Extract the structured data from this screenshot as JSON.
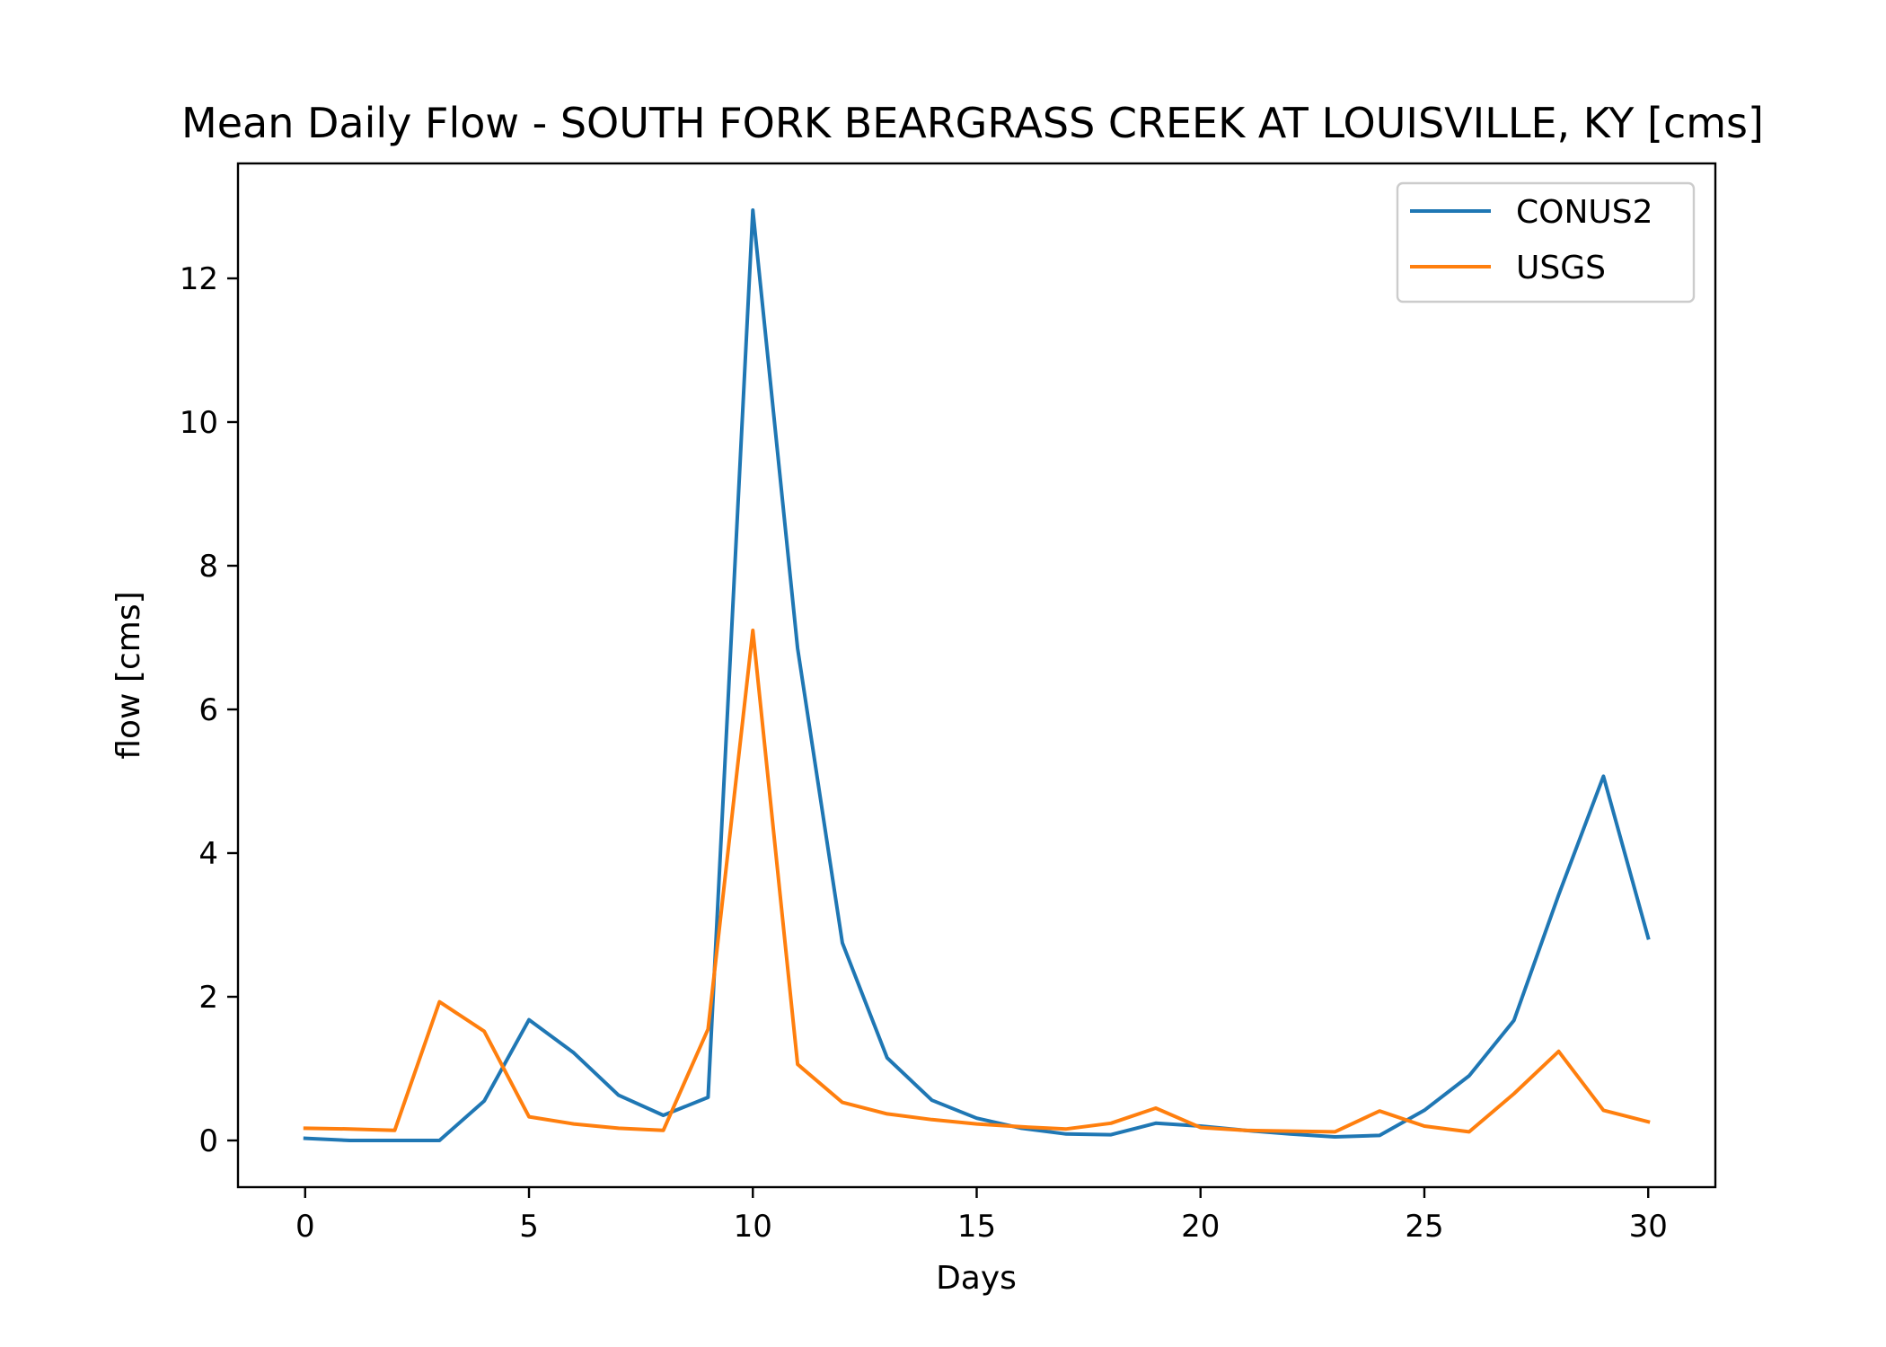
{
  "chart_data": {
    "type": "line",
    "title": "Mean Daily Flow - SOUTH FORK BEARGRASS CREEK AT LOUISVILLE, KY [cms]",
    "xlabel": "Days",
    "ylabel": "flow [cms]",
    "xlim": [
      -1.5,
      31.5
    ],
    "ylim": [
      -0.65,
      13.6
    ],
    "xticks": [
      0,
      5,
      10,
      15,
      20,
      25,
      30
    ],
    "yticks": [
      0,
      2,
      4,
      6,
      8,
      10,
      12
    ],
    "grid": false,
    "legend_position": "upper-right",
    "x": [
      0,
      1,
      2,
      3,
      4,
      5,
      6,
      7,
      8,
      9,
      10,
      11,
      12,
      13,
      14,
      15,
      16,
      17,
      18,
      19,
      20,
      21,
      22,
      23,
      24,
      25,
      26,
      27,
      28,
      29,
      30
    ],
    "series": [
      {
        "name": "CONUS2",
        "color": "#1f77b4",
        "values": [
          0.03,
          0.0,
          0.0,
          0.0,
          0.55,
          1.68,
          1.22,
          0.63,
          0.35,
          0.6,
          12.95,
          6.85,
          2.75,
          1.15,
          0.56,
          0.31,
          0.17,
          0.09,
          0.08,
          0.24,
          0.2,
          0.14,
          0.09,
          0.05,
          0.07,
          0.42,
          0.9,
          1.67,
          3.42,
          5.07,
          2.82
        ]
      },
      {
        "name": "USGS",
        "color": "#ff7f0e",
        "values": [
          0.17,
          0.16,
          0.14,
          1.93,
          1.52,
          0.33,
          0.23,
          0.17,
          0.14,
          1.55,
          7.1,
          1.06,
          0.53,
          0.37,
          0.29,
          0.23,
          0.19,
          0.16,
          0.24,
          0.45,
          0.18,
          0.14,
          0.13,
          0.12,
          0.41,
          0.2,
          0.12,
          0.65,
          1.24,
          0.42,
          0.26
        ]
      }
    ]
  }
}
